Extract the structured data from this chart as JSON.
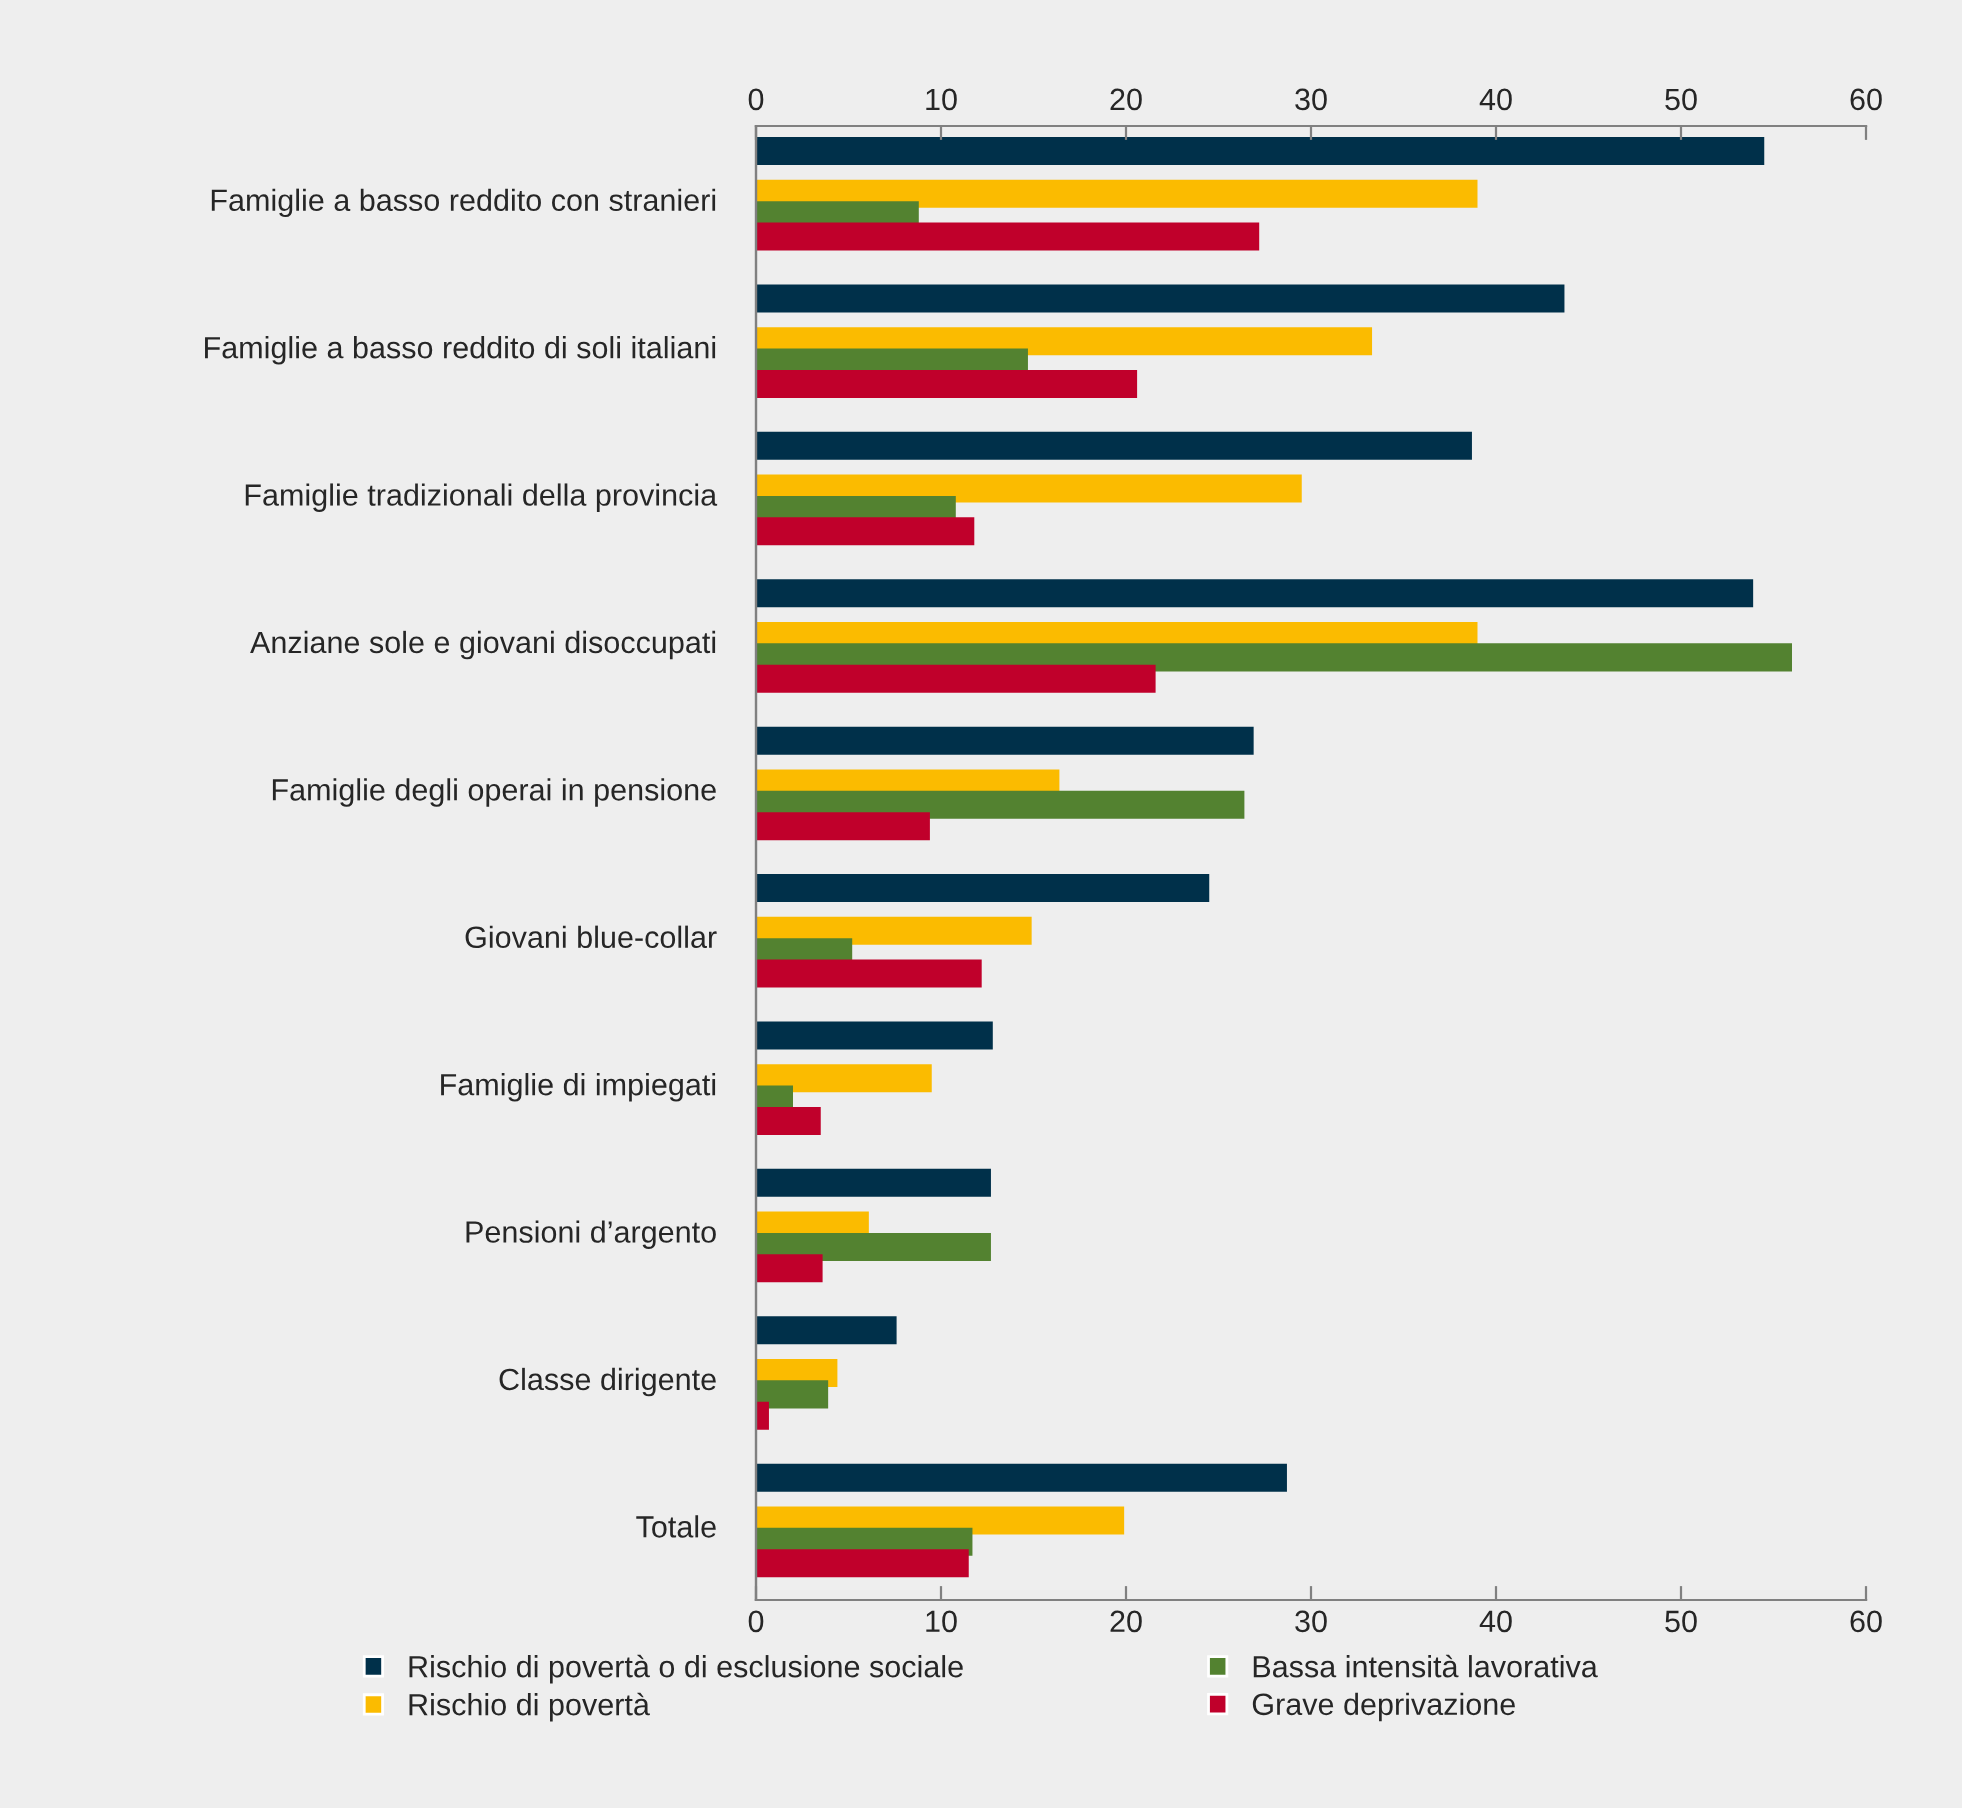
{
  "chart_data": {
    "type": "bar",
    "orientation": "horizontal",
    "categories": [
      "Famiglie a basso reddito con stranieri",
      "Famiglie a basso reddito di soli italiani",
      "Famiglie tradizionali della provincia",
      "Anziane sole e giovani disoccupati",
      "Famiglie degli operai in pensione",
      "Giovani blue-collar",
      "Famiglie di impiegati",
      "Pensioni d’argento",
      "Classe dirigente",
      "Totale"
    ],
    "series": [
      {
        "name": "Rischio di povertà o di esclusione sociale",
        "color": "#00304a",
        "values": [
          54.5,
          43.7,
          38.7,
          53.9,
          26.9,
          24.5,
          12.8,
          12.7,
          7.6,
          28.7
        ]
      },
      {
        "name": "Rischio di povertà",
        "color": "#fbbb00",
        "values": [
          39.0,
          33.3,
          29.5,
          39.0,
          16.4,
          14.9,
          9.5,
          6.1,
          4.4,
          19.9
        ]
      },
      {
        "name": "Bassa intensità lavorativa",
        "color": "#538230",
        "values": [
          8.8,
          14.7,
          10.8,
          56.0,
          26.4,
          5.2,
          2.0,
          12.7,
          3.9,
          11.7
        ]
      },
      {
        "name": "Grave deprivazione",
        "color": "#c0002b",
        "values": [
          27.2,
          20.6,
          11.8,
          21.6,
          9.4,
          12.2,
          3.5,
          3.6,
          0.7,
          11.5
        ]
      }
    ],
    "xlim": [
      0,
      60
    ],
    "xticks": [
      0,
      10,
      20,
      30,
      40,
      50,
      60
    ],
    "x2lim": [
      0,
      60
    ],
    "x2ticks": [
      0,
      10,
      20,
      30,
      40,
      50,
      60
    ],
    "grid": false,
    "legend": "bottom"
  }
}
